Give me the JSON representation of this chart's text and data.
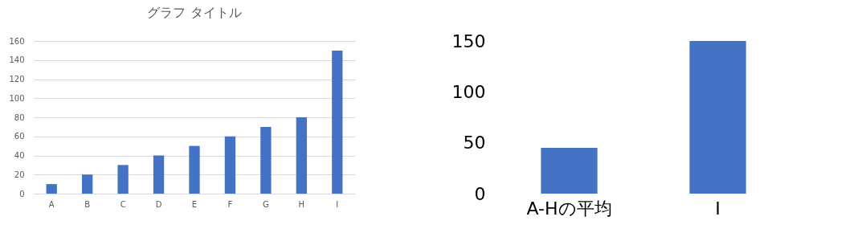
{
  "chart_data": [
    {
      "type": "bar",
      "title": "グラフ タイトル",
      "categories": [
        "A",
        "B",
        "C",
        "D",
        "E",
        "F",
        "G",
        "H",
        "I"
      ],
      "values": [
        10,
        20,
        30,
        40,
        50,
        60,
        70,
        80,
        150
      ],
      "color": "#4472c4",
      "ylim": [
        0,
        160
      ],
      "yticks": [
        0,
        20,
        40,
        60,
        80,
        100,
        120,
        140,
        160
      ],
      "grid": "y"
    },
    {
      "type": "bar",
      "categories": [
        "A-Hの平均",
        "I"
      ],
      "values": [
        45,
        150
      ],
      "color": "#4472c4",
      "ylim": [
        0,
        150
      ],
      "yticks": [
        0,
        50,
        100,
        150
      ],
      "grid": false
    }
  ]
}
